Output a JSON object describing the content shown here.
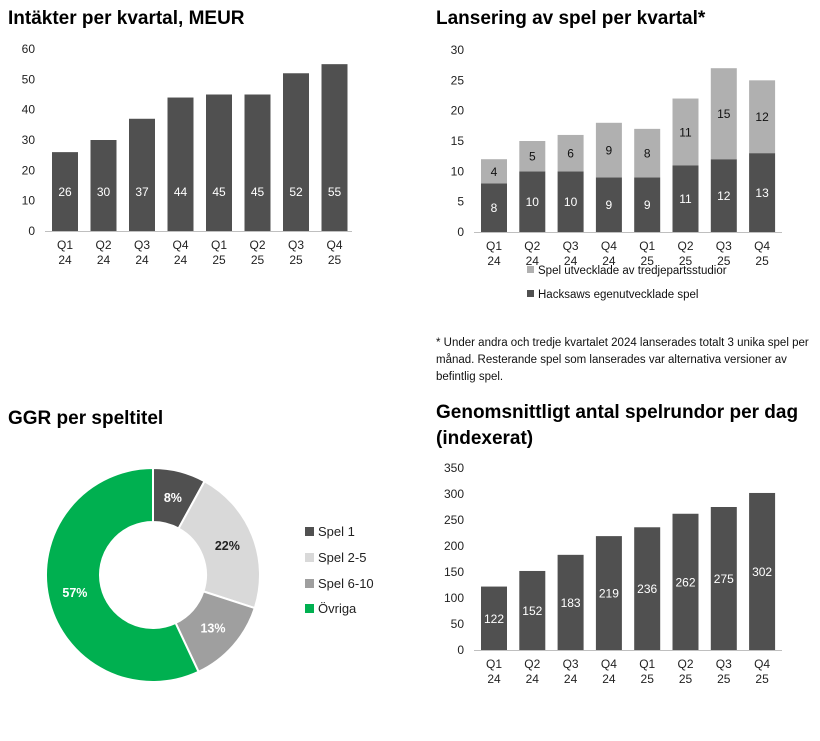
{
  "colors": {
    "bar_dark": "#505050",
    "bar_light": "#b0b0b0",
    "donut_spel1": "#505050",
    "donut_spel25": "#d9d9d9",
    "donut_spel610": "#9f9f9f",
    "donut_ovriga": "#00b050",
    "axis": "#bfbfbf"
  },
  "chart_data": [
    {
      "id": "revenue",
      "type": "bar",
      "title": "Intäkter per kvartal, MEUR",
      "categories": [
        "Q1\n24",
        "Q2\n24",
        "Q3\n24",
        "Q4\n24",
        "Q1\n25",
        "Q2\n25",
        "Q3\n25",
        "Q4\n25"
      ],
      "values": [
        26,
        30,
        37,
        44,
        45,
        45,
        52,
        55
      ],
      "data_values": [
        26.3,
        29.8,
        37.3,
        43.7,
        45.0,
        45.4,
        52.0,
        55.0
      ],
      "ylim": [
        0,
        60
      ],
      "yticks": [
        0,
        10,
        20,
        30,
        40,
        50,
        60
      ],
      "xlabel": "",
      "ylabel": ""
    },
    {
      "id": "launches",
      "type": "bar",
      "stacked": true,
      "title": "Lansering av spel per kvartal*",
      "categories": [
        "Q1\n24",
        "Q2\n24",
        "Q3\n24",
        "Q4\n24",
        "Q1\n25",
        "Q2\n25",
        "Q3\n25",
        "Q4\n25"
      ],
      "series": [
        {
          "name": "Hacksaws egenutvecklade spel",
          "values": [
            8,
            10,
            10,
            9,
            9,
            11,
            12,
            13
          ]
        },
        {
          "name": "Spel utvecklade av tredjepartsstudior",
          "values": [
            4,
            5,
            6,
            9,
            8,
            11,
            15,
            12
          ]
        }
      ],
      "ylim": [
        0,
        30
      ],
      "yticks": [
        0,
        5,
        10,
        15,
        20,
        25,
        30
      ],
      "legend_order": [
        1,
        0
      ],
      "legend_position": "bottom",
      "footnote": "* Under andra och tredje kvartalet 2024 lanserades totalt 3 unika spel per månad. Resterande spel som lanserades var alternativa versioner av befintlig spel."
    },
    {
      "id": "ggr",
      "type": "pie",
      "donut": true,
      "title": "GGR per speltitel",
      "labels": [
        "Spel 1",
        "Spel 2-5",
        "Spel 6-10",
        "Övriga"
      ],
      "values": [
        8,
        22,
        13,
        57
      ],
      "value_labels": [
        "8%",
        "22%",
        "13%",
        "57%"
      ],
      "legend_position": "right"
    },
    {
      "id": "rounds",
      "type": "bar",
      "title": "Genomsnittligt antal spelrundor per dag (indexerat)",
      "categories": [
        "Q1\n24",
        "Q2\n24",
        "Q3\n24",
        "Q4\n24",
        "Q1\n25",
        "Q2\n25",
        "Q3\n25",
        "Q4\n25"
      ],
      "values": [
        122,
        152,
        183,
        219,
        236,
        262,
        275,
        302
      ],
      "ylim": [
        0,
        350
      ],
      "yticks": [
        0,
        50,
        100,
        150,
        200,
        250,
        300,
        350
      ],
      "xlabel": "",
      "ylabel": ""
    }
  ]
}
